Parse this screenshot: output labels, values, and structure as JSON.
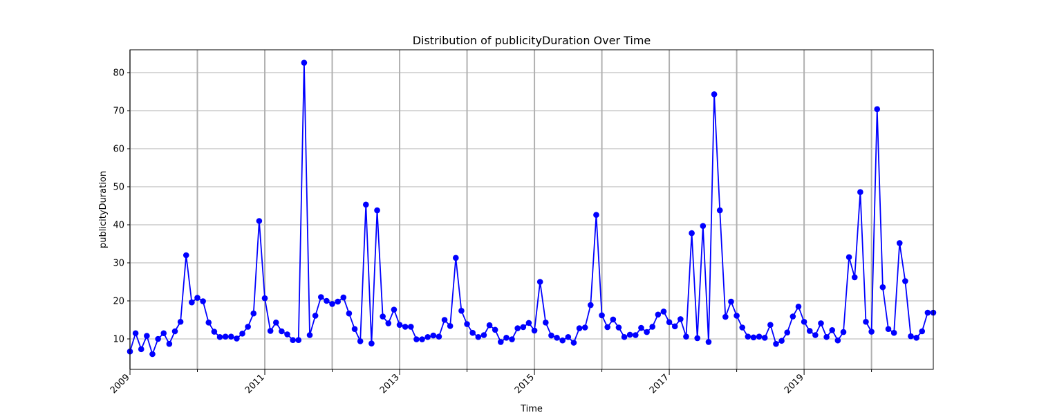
{
  "chart_data": {
    "type": "line",
    "title": "Distribution of publicityDuration Over Time",
    "xlabel": "Time",
    "ylabel": "publicityDuration",
    "xlim": [
      "2009-01",
      "2020-12"
    ],
    "ylim": [
      2,
      86
    ],
    "x_major_ticks": [
      "2009",
      "2011",
      "2013",
      "2015",
      "2017",
      "2019"
    ],
    "x_minor_years": [
      "2010",
      "2012",
      "2014",
      "2016",
      "2018",
      "2020"
    ],
    "y_ticks": [
      10,
      20,
      30,
      40,
      50,
      60,
      70,
      80
    ],
    "grid": true,
    "line_color": "#0000ff",
    "marker": "circle",
    "series": [
      {
        "x_start": "2009-01",
        "x_step": "1 month",
        "values": [
          6.7,
          11.5,
          7.3,
          10.8,
          6.0,
          10.0,
          11.5,
          8.7,
          12.0,
          14.5,
          32.0,
          19.6,
          20.8,
          19.9,
          14.3,
          11.9,
          10.5,
          10.6,
          10.6,
          10.1,
          11.4,
          13.2,
          16.7,
          41.0,
          20.7,
          12.1,
          14.3,
          12.0,
          11.2,
          9.7,
          9.7,
          82.6,
          11.0,
          16.1,
          21.0,
          20.0,
          19.2,
          19.8,
          20.9,
          16.7,
          12.6,
          9.4,
          45.3,
          8.8,
          43.8,
          15.9,
          14.1,
          17.7,
          13.7,
          13.2,
          13.2,
          9.9,
          9.9,
          10.5,
          10.9,
          10.6,
          15.0,
          13.4,
          31.3,
          17.4,
          13.9,
          11.6,
          10.5,
          11.0,
          13.6,
          12.4,
          9.2,
          10.3,
          9.9,
          12.8,
          13.1,
          14.2,
          12.2,
          25.0,
          14.3,
          10.9,
          10.3,
          9.6,
          10.5,
          9.0,
          12.8,
          13.0,
          18.9,
          42.6,
          16.2,
          13.1,
          15.1,
          13.0,
          10.5,
          11.1,
          11.0,
          12.9,
          11.8,
          13.2,
          16.4,
          17.2,
          14.4,
          13.3,
          15.2,
          10.6,
          37.8,
          10.2,
          39.7,
          9.2,
          74.3,
          43.8,
          15.8,
          19.8,
          16.1,
          13.0,
          10.6,
          10.4,
          10.6,
          10.3,
          13.7,
          8.7,
          9.5,
          11.7,
          15.9,
          18.5,
          14.5,
          12.1,
          11.0,
          14.1,
          10.5,
          12.3,
          9.6,
          11.8,
          31.5,
          26.2,
          48.6,
          14.5,
          11.9,
          70.4,
          23.6,
          12.6,
          11.6,
          35.2,
          25.2,
          10.7,
          10.3,
          12.0,
          16.9,
          16.9
        ]
      }
    ]
  }
}
